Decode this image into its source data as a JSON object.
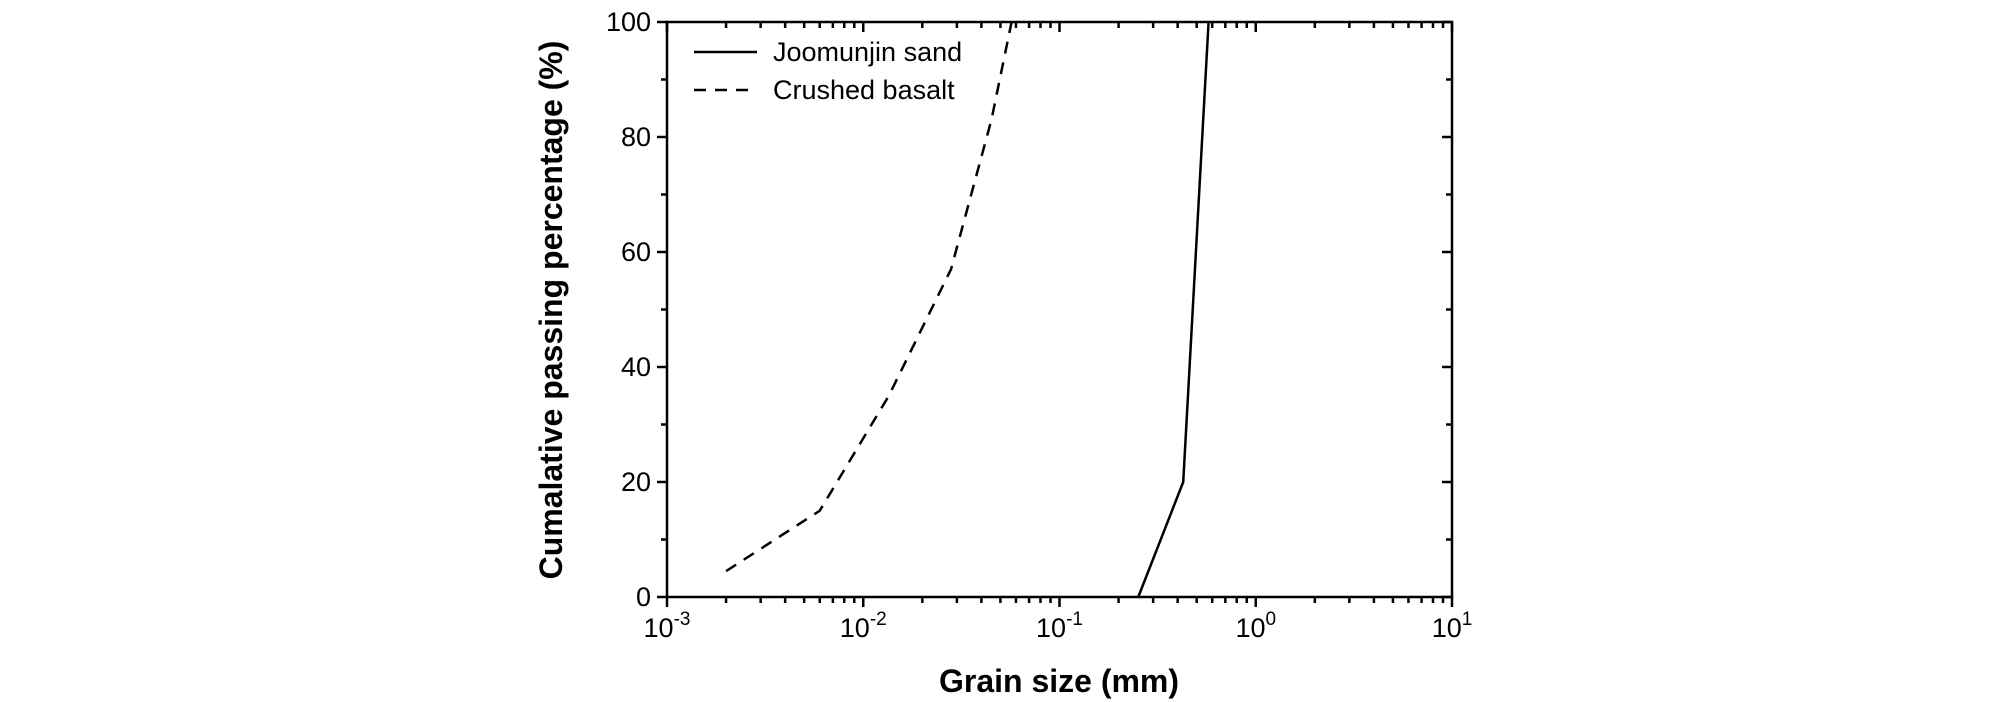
{
  "chart_data": {
    "type": "line",
    "xlabel": "Grain size (mm)",
    "ylabel": "Cumalative passing percentage (%)",
    "xscale": "log",
    "xlim": [
      0.001,
      10
    ],
    "xticks": [
      {
        "value": 0.001,
        "label": "10-3"
      },
      {
        "value": 0.01,
        "label": "10-2"
      },
      {
        "value": 0.1,
        "label": "10-1"
      },
      {
        "value": 1,
        "label": "100"
      },
      {
        "value": 10,
        "label": "101"
      }
    ],
    "ylim": [
      0,
      100
    ],
    "yticks": [
      0,
      20,
      40,
      60,
      80,
      100
    ],
    "legend": "upper left",
    "series": [
      {
        "name": "Joomunjin sand",
        "color": "#000000",
        "dash": "solid",
        "x": [
          0.252,
          0.427,
          0.575
        ],
        "values": [
          0,
          20,
          100
        ]
      },
      {
        "name": "Crushed basalt",
        "color": "#000000",
        "dash": "dashed",
        "x": [
          0.002,
          0.006,
          0.0135,
          0.028,
          0.045,
          0.057
        ],
        "values": [
          4.5,
          15,
          35,
          57,
          83,
          100
        ]
      }
    ]
  }
}
